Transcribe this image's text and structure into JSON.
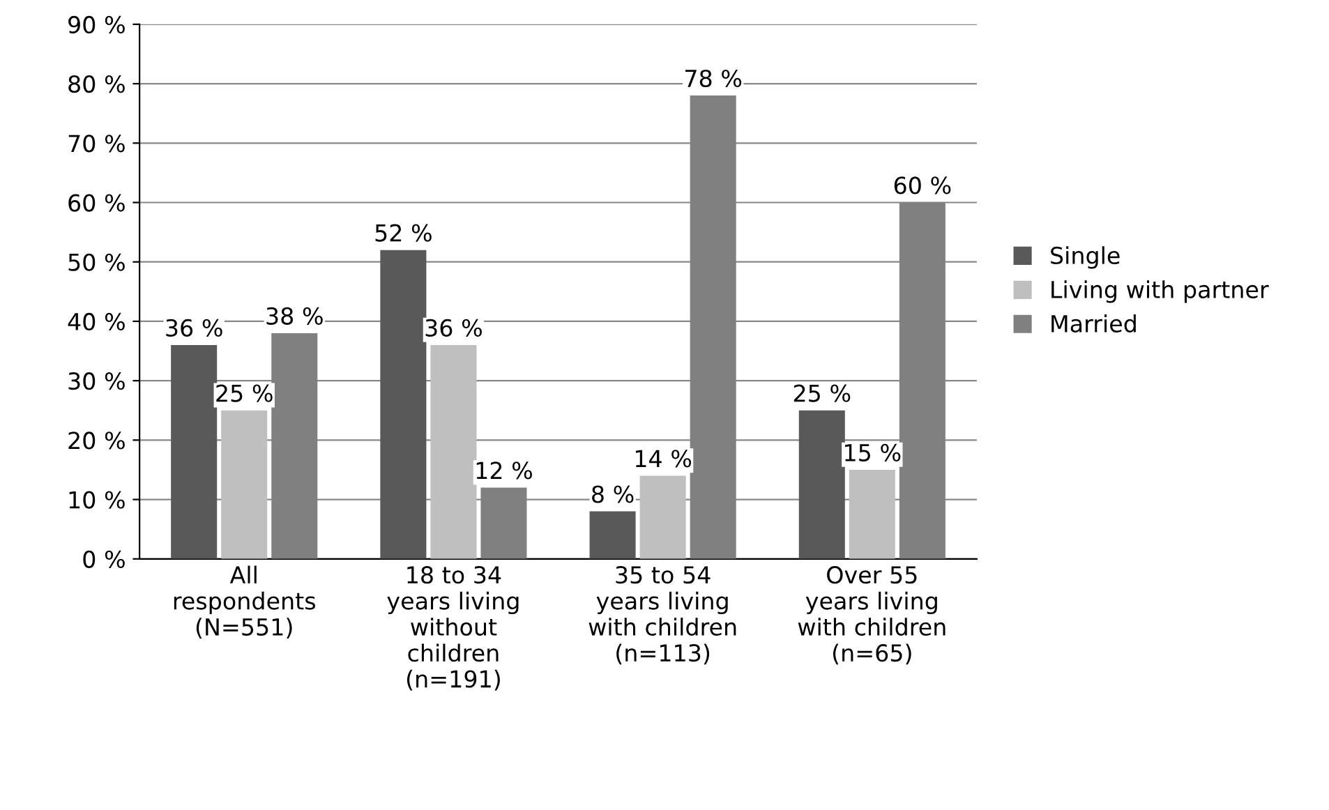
{
  "chart_data": {
    "type": "bar",
    "categories": [
      "All\nrespondents\n(N=551)",
      "18 to 34\nyears living\nwithout\nchildren\n(n=191)",
      "35 to 54\nyears living\nwith children\n(n=113)",
      "Over 55\nyears living\nwith children\n(n=65)"
    ],
    "series": [
      {
        "name": "Single",
        "color": "#595959",
        "values": [
          36,
          52,
          8,
          25
        ],
        "value_labels": [
          "36 %",
          "52 %",
          "8 %",
          "25 %"
        ]
      },
      {
        "name": "Living with partner",
        "color": "#bfbfbf",
        "values": [
          25,
          36,
          14,
          15
        ],
        "value_labels": [
          "25 %",
          "36 %",
          "14 %",
          "15 %"
        ]
      },
      {
        "name": "Married",
        "color": "#808080",
        "values": [
          38,
          12,
          78,
          60
        ],
        "value_labels": [
          "38 %",
          "12 %",
          "78 %",
          "60 %"
        ]
      }
    ],
    "ylim": [
      0,
      90
    ],
    "yticks": [
      {
        "value": 0,
        "label": "0 %"
      },
      {
        "value": 10,
        "label": "10 %"
      },
      {
        "value": 20,
        "label": "20 %"
      },
      {
        "value": 30,
        "label": "30 %"
      },
      {
        "value": 40,
        "label": "40 %"
      },
      {
        "value": 50,
        "label": "50 %"
      },
      {
        "value": 60,
        "label": "60 %"
      },
      {
        "value": 70,
        "label": "70 %"
      },
      {
        "value": 80,
        "label": "80 %"
      },
      {
        "value": 90,
        "label": "90 %"
      }
    ],
    "grid": "y",
    "legend": "right"
  }
}
